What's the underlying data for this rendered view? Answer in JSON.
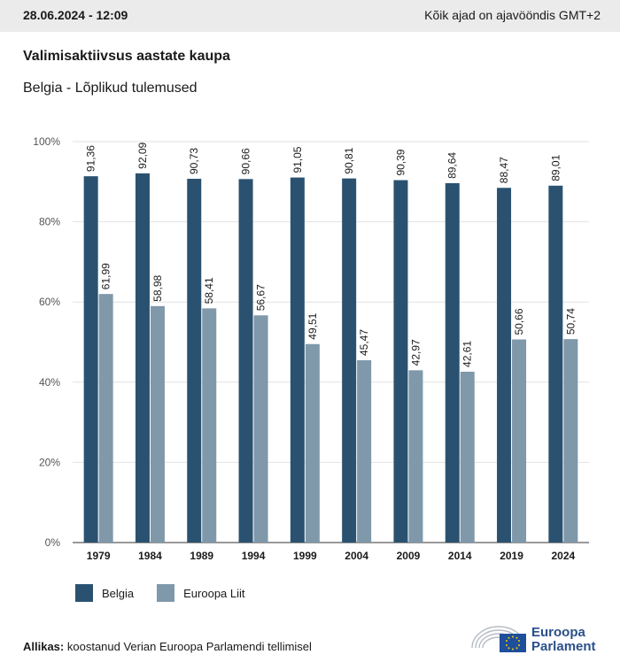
{
  "header": {
    "date": "28.06.2024 - 12:09",
    "timezone_note": "Kõik ajad on ajavööndis GMT+2"
  },
  "title": "Valimisaktiivsus aastate kaupa",
  "subtitle": "Belgia - Lõplikud tulemused",
  "legend": {
    "belgia": "Belgia",
    "eu": "Euroopa Liit"
  },
  "source": {
    "label": "Allikas:",
    "text": "koostanud Verian Euroopa Parlamendi tellimisel"
  },
  "logo": {
    "line1": "Euroopa",
    "line2": "Parlament"
  },
  "colors": {
    "belgia": "#2a5270",
    "eu": "#7f98aa",
    "grid": "#e2e2e2",
    "axis": "#333333",
    "logo_blue": "#2b4f8a"
  },
  "chart_data": {
    "type": "bar",
    "categories": [
      "1979",
      "1984",
      "1989",
      "1994",
      "1999",
      "2004",
      "2009",
      "2014",
      "2019",
      "2024"
    ],
    "series": [
      {
        "name": "Belgia",
        "values": [
          91.36,
          92.09,
          90.73,
          90.66,
          91.05,
          90.81,
          90.39,
          89.64,
          88.47,
          89.01
        ],
        "labels": [
          "91,36",
          "92,09",
          "90,73",
          "90,66",
          "91,05",
          "90,81",
          "90,39",
          "89,64",
          "88,47",
          "89,01"
        ]
      },
      {
        "name": "Euroopa Liit",
        "values": [
          61.99,
          58.98,
          58.41,
          56.67,
          49.51,
          45.47,
          42.97,
          42.61,
          50.66,
          50.74
        ],
        "labels": [
          "61,99",
          "58,98",
          "58,41",
          "56,67",
          "49,51",
          "45,47",
          "42,97",
          "42,61",
          "50,66",
          "50,74"
        ]
      }
    ],
    "yticks": [
      "0%",
      "20%",
      "40%",
      "60%",
      "80%",
      "100%"
    ],
    "ylim": [
      0,
      100
    ],
    "grid": true,
    "legend_position": "bottom-left"
  }
}
